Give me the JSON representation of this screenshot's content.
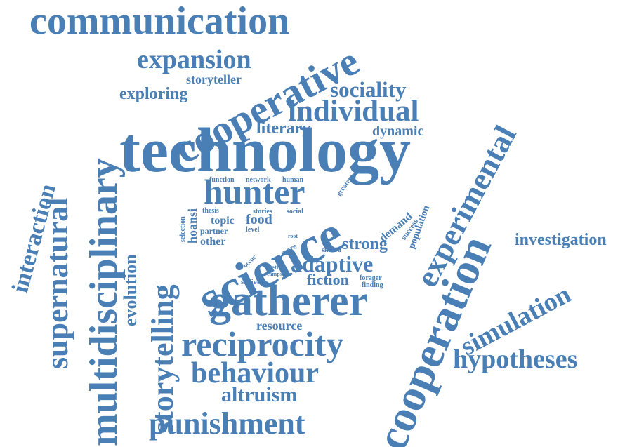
{
  "style": {
    "word_color": "#4a7fb5",
    "background": "#ffffff"
  },
  "words": [
    "communication",
    "cooperative",
    "expansion",
    "storyteller",
    "exploring",
    "sociality",
    "individual",
    "literary",
    "dynamic",
    "technology",
    "multidisciplinary",
    "supernatural",
    "interaction",
    "experimental",
    "hunter",
    "function",
    "network",
    "human",
    "greater",
    "storytelling",
    "hoansi",
    "selection",
    "thesis",
    "topic",
    "stories",
    "social",
    "food",
    "partner",
    "level",
    "root",
    "demand",
    "success",
    "population",
    "other",
    "more",
    "occur",
    "skilled",
    "science",
    "strong",
    "cooperation",
    "investigation",
    "evolution",
    "adaptive",
    "return",
    "campscale",
    "forager",
    "societies",
    "fiction",
    "finding",
    "gatherer",
    "simulation",
    "resource",
    "reciprocity",
    "hypotheses",
    "behaviour",
    "altruism",
    "punishment"
  ]
}
